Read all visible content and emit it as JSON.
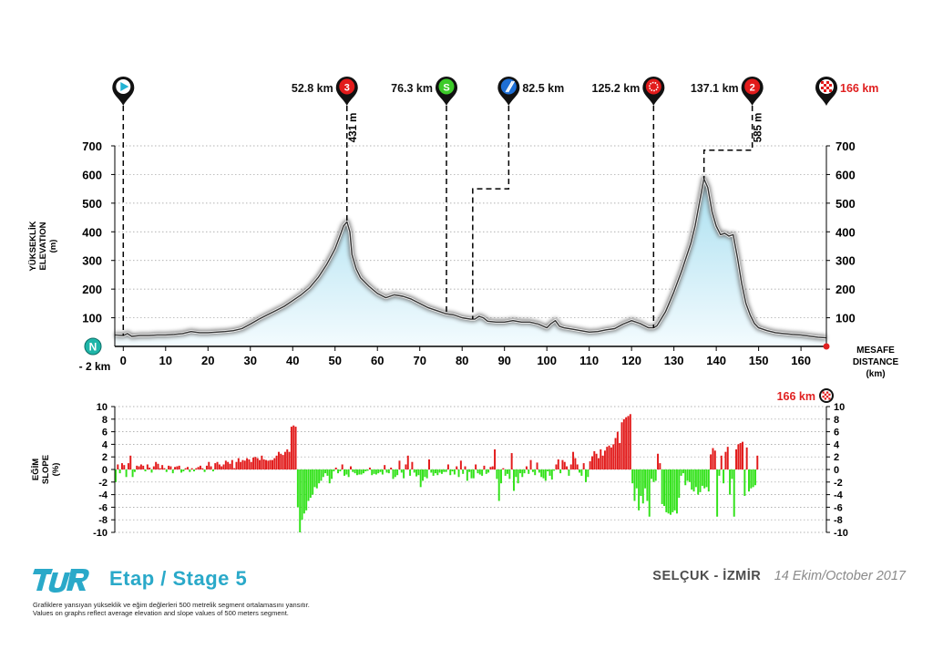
{
  "chart_data": [
    {
      "type": "area",
      "title": "",
      "ylabel_tr": "YÜKSEKLİK",
      "ylabel_en": "ELEVATION",
      "yunit": "(m)",
      "xlabel_tr": "MESAFE",
      "xlabel_en": "DISTANCE",
      "xunit": "(km)",
      "xlim": [
        -2,
        166
      ],
      "ylim": [
        0,
        700
      ],
      "x_ticks": [
        0,
        10,
        20,
        30,
        40,
        50,
        60,
        70,
        80,
        90,
        100,
        110,
        120,
        130,
        140,
        150,
        160
      ],
      "y_ticks": [
        100,
        200,
        300,
        400,
        500,
        600,
        700
      ],
      "grid": true,
      "start_badge": "N",
      "start_label": "- 2 km",
      "colors": {
        "fill_top": "#a9dff0",
        "fill_bottom": "#f3fbfe",
        "line": "#333333",
        "grid": "#9a9a9a",
        "finish": "#e02020"
      },
      "elevation": {
        "x": [
          -2,
          0,
          1,
          2,
          4,
          6,
          8,
          10,
          12,
          14,
          16,
          18,
          20,
          22,
          24,
          26,
          28,
          30,
          32,
          34,
          36,
          38,
          40,
          42,
          44,
          46,
          48,
          50,
          51,
          52,
          52.8,
          53.5,
          54,
          55,
          56,
          58,
          60,
          62,
          64,
          66,
          68,
          70,
          72,
          74,
          76,
          78,
          80,
          82,
          83,
          84,
          85,
          86,
          88,
          90,
          92,
          94,
          96,
          98,
          100,
          101,
          102,
          103,
          104,
          106,
          108,
          110,
          112,
          114,
          116,
          118,
          120,
          122,
          124,
          125.2,
          126,
          128,
          130,
          132,
          134,
          135,
          136,
          137.1,
          138,
          139,
          140,
          141,
          142,
          143,
          144,
          145,
          146,
          147,
          148,
          149,
          150,
          152,
          154,
          156,
          158,
          160,
          162,
          164,
          166
        ],
        "y": [
          40,
          38,
          45,
          35,
          38,
          38,
          40,
          40,
          42,
          45,
          52,
          48,
          48,
          50,
          52,
          55,
          62,
          78,
          95,
          110,
          125,
          140,
          160,
          180,
          205,
          240,
          285,
          340,
          380,
          420,
          435,
          400,
          320,
          270,
          240,
          210,
          185,
          170,
          180,
          175,
          165,
          150,
          135,
          125,
          115,
          110,
          100,
          95,
          95,
          105,
          100,
          88,
          85,
          85,
          90,
          85,
          85,
          78,
          65,
          80,
          90,
          70,
          65,
          60,
          55,
          50,
          52,
          58,
          62,
          78,
          90,
          80,
          65,
          65,
          72,
          120,
          190,
          270,
          360,
          420,
          500,
          585,
          555,
          470,
          420,
          390,
          395,
          385,
          390,
          310,
          220,
          150,
          110,
          80,
          65,
          55,
          48,
          45,
          42,
          40,
          36,
          32,
          30
        ]
      }
    },
    {
      "type": "bar",
      "title": "",
      "ylabel_tr": "EĞİM",
      "ylabel_en": "SLOPE",
      "yunit": "(%)",
      "xlim": [
        -2,
        166
      ],
      "ylim": [
        -10,
        10
      ],
      "y_ticks": [
        -10,
        -8,
        -6,
        -4,
        -2,
        0,
        2,
        4,
        6,
        8,
        10
      ],
      "grid": true,
      "segment_km": 0.5,
      "colors": {
        "up": "#e21b1b",
        "down": "#33e21b"
      },
      "slope": [
        -2,
        0.8,
        -0.6,
        1,
        0.7,
        -1.2,
        1,
        2.2,
        -1.2,
        -0.4,
        0.6,
        0.5,
        0.8,
        0.6,
        -0.3,
        0.8,
        0.3,
        -0.5,
        0.5,
        1.2,
        0.9,
        0.2,
        0.7,
        0.2,
        -0.4,
        0.6,
        0.5,
        -0.6,
        0.4,
        0.5,
        0.6,
        -0.5,
        -0.3,
        0.2,
        0.4,
        -0.4,
        0.2,
        -0.3,
        0.2,
        0.4,
        0.6,
        0.2,
        -0.4,
        0.6,
        1.2,
        0.5,
        -0.3,
        1,
        1.2,
        0.8,
        0.5,
        0.8,
        1.4,
        1.2,
        0.9,
        1.5,
        0.2,
        1.2,
        1.8,
        1.2,
        1.5,
        1.4,
        1.8,
        1.6,
        1.2,
        1.9,
        2,
        1.8,
        1.5,
        2.2,
        1.6,
        1.5,
        1.4,
        1.5,
        1.5,
        1.8,
        2.2,
        2.8,
        2.5,
        2.3,
        2.8,
        3.2,
        2.8,
        6.8,
        7,
        6.8,
        -6,
        -10,
        -8,
        -7,
        -6.5,
        -5,
        -4.5,
        -4,
        -2.8,
        -3,
        -2.2,
        -1.8,
        -1.2,
        -0.6,
        -1,
        -2.2,
        -1.5,
        -0.3,
        0.3,
        -0.6,
        -0.3,
        0.8,
        -1,
        -0.8,
        -1.2,
        0.5,
        -0.4,
        -0.6,
        -0.9,
        -0.8,
        -0.8,
        -0.6,
        -0.3,
        -0.2,
        0.3,
        -0.9,
        -0.7,
        -0.8,
        -0.6,
        -0.4,
        -0.8,
        0.7,
        -0.5,
        -0.6,
        0.3,
        -1.5,
        -1.2,
        -0.9,
        1.4,
        -0.5,
        -1.4,
        0.8,
        2.2,
        -1,
        1.2,
        -0.5,
        -1.1,
        -0.9,
        -2.8,
        -1.8,
        -1.2,
        -1.4,
        1.6,
        -0.5,
        -1,
        -0.6,
        -0.9,
        -0.5,
        -0.7,
        -0.4,
        -0.4,
        0.8,
        -0.9,
        -0.3,
        -0.8,
        0.5,
        -1.2,
        1.4,
        -0.7,
        0.5,
        -1.8,
        -0.4,
        -1.4,
        -1.4,
        0.8,
        -0.6,
        -0.8,
        -1,
        0.6,
        -0.7,
        -0.5,
        0.4,
        0.5,
        3.2,
        -1.5,
        -5,
        -2.2,
        0.2,
        -1,
        -0.7,
        -1.5,
        2.6,
        -3.4,
        -1.2,
        -2.2,
        -0.6,
        -1.2,
        -0.6,
        0.5,
        -0.7,
        1.5,
        -0.4,
        -0.9,
        1.1,
        -0.5,
        -1.2,
        -1.4,
        -1.8,
        -0.3,
        -1,
        -1.6,
        -0.2,
        0.8,
        1.6,
        -0.6,
        1.5,
        1.2,
        0.5,
        -1,
        0.8,
        2.8,
        1.8,
        0.8,
        -0.5,
        -1,
        1,
        -2,
        -1.2,
        1.3,
        2.1,
        2.9,
        2.5,
        1.8,
        3.2,
        2.2,
        3,
        3.6,
        3.8,
        3.5,
        4,
        5,
        6,
        4.2,
        7.5,
        8,
        8.3,
        8.5,
        8.8,
        -2.2,
        -5,
        -3,
        -6.5,
        -4.2,
        -5.4,
        -3,
        -5,
        -7.5,
        -1.5,
        -2,
        -1.8,
        2.5,
        1,
        -5.5,
        -5.8,
        -6.8,
        -7,
        -7.2,
        -6.8,
        -6.5,
        -7,
        -4.5,
        -1,
        -0.6,
        -2.5,
        -1.8,
        -2,
        -3.2,
        -3.5,
        -2.8,
        -4,
        -3.6,
        -2.6,
        -3,
        -2.8,
        -3.5,
        2.4,
        3.4,
        3,
        -7.5,
        -1,
        2.2,
        -2.2,
        2.8,
        3.6,
        -4,
        -1.5,
        -7.5,
        3.2,
        4,
        4.2,
        4.4,
        -4.2,
        3.5,
        -3.5,
        -3,
        -2.8,
        -2.5,
        2.2
      ]
    }
  ],
  "markers": [
    {
      "km": 0,
      "icon": "start-icon",
      "label": "",
      "color": "#22b3d4"
    },
    {
      "km": 52.8,
      "icon": "climb-category-icon",
      "label": "52.8 km",
      "badge": "3",
      "color": "#e21b1b",
      "altitude_label": "431 m"
    },
    {
      "km": 76.3,
      "icon": "sprint-icon",
      "label": "76.3 km",
      "badge": "S",
      "color": "#3dcb2a"
    },
    {
      "km": 82.5,
      "icon": "feed-zone-icon",
      "label": "82.5 km",
      "color": "#1e6fd6"
    },
    {
      "km": 125.2,
      "icon": "bonus-sprint-icon",
      "label": "125.2 km",
      "color": "#e21b1b"
    },
    {
      "km": 137.1,
      "icon": "climb-category-icon",
      "label": "137.1 km",
      "badge": "2",
      "color": "#e21b1b",
      "altitude_label": "585 m"
    },
    {
      "km": 166,
      "icon": "finish-flag-icon",
      "label": "166 km",
      "color": "#e21b1b"
    }
  ],
  "slope_finish_label": "166 km",
  "footer": {
    "logo": "TUR",
    "stage_title": "Etap / Stage 5",
    "note_tr": "Grafiklere yansıyan yükseklik ve eğim değlerleri 500 metrelik segment ortalamasını yansıtır.",
    "note_en": "Values on graphs reflect average elevation and slope values of 500 meters segment.",
    "route": "SELÇUK - İZMİR",
    "date": "14 Ekim/October 2017"
  }
}
